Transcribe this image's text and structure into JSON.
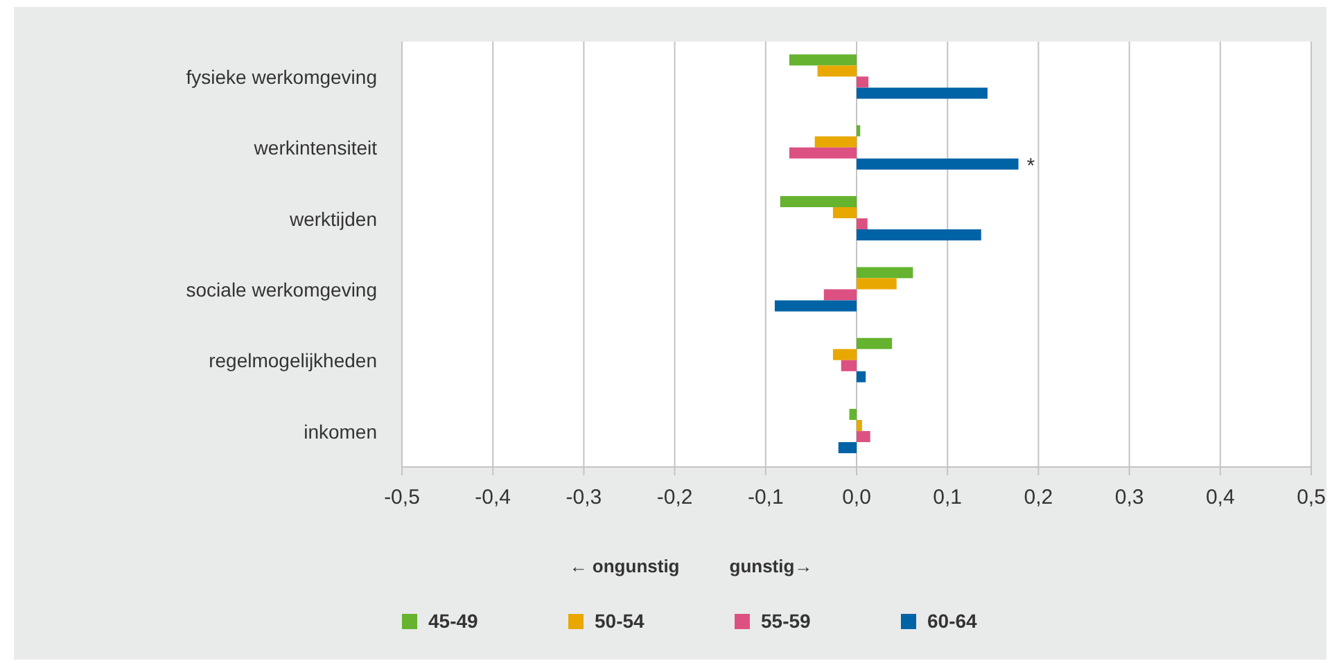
{
  "chart_data": {
    "type": "bar",
    "orientation": "horizontal",
    "categories": [
      "fysieke werkomgeving",
      "werkintensiteit",
      "werktijden",
      "sociale werkomgeving",
      "regelmogelijkheden",
      "inkomen"
    ],
    "series": [
      {
        "name": "45-49",
        "color": "#65b32e",
        "values": [
          -0.074,
          0.004,
          -0.084,
          0.062,
          0.039,
          -0.008
        ]
      },
      {
        "name": "50-54",
        "color": "#e8a800",
        "values": [
          -0.043,
          -0.046,
          -0.026,
          0.044,
          -0.026,
          0.006
        ]
      },
      {
        "name": "55-59",
        "color": "#dc5182",
        "values": [
          0.013,
          -0.074,
          0.012,
          -0.036,
          -0.017,
          0.015
        ]
      },
      {
        "name": "60-64",
        "color": "#0063a6",
        "values": [
          0.144,
          0.178,
          0.137,
          -0.09,
          0.01,
          -0.02
        ],
        "value_labels": [
          null,
          "*",
          null,
          null,
          null,
          null
        ]
      }
    ],
    "xlim": [
      -0.5,
      0.5
    ],
    "xticks": [
      {
        "value": -0.5,
        "label": "-0,5"
      },
      {
        "value": -0.4,
        "label": "-0,4"
      },
      {
        "value": -0.3,
        "label": "-0,3"
      },
      {
        "value": -0.2,
        "label": "-0,2"
      },
      {
        "value": -0.1,
        "label": "-0,1"
      },
      {
        "value": 0,
        "label": "0,0"
      },
      {
        "value": 0.1,
        "label": "0,1"
      },
      {
        "value": 0.2,
        "label": "0,2"
      },
      {
        "value": 0.3,
        "label": "0,3"
      },
      {
        "value": 0.4,
        "label": "0,4"
      },
      {
        "value": 0.5,
        "label": "0,5"
      }
    ],
    "grid": "x",
    "legend": "bottom",
    "annotations": [
      "← ongunstig",
      "gunstig→"
    ]
  }
}
